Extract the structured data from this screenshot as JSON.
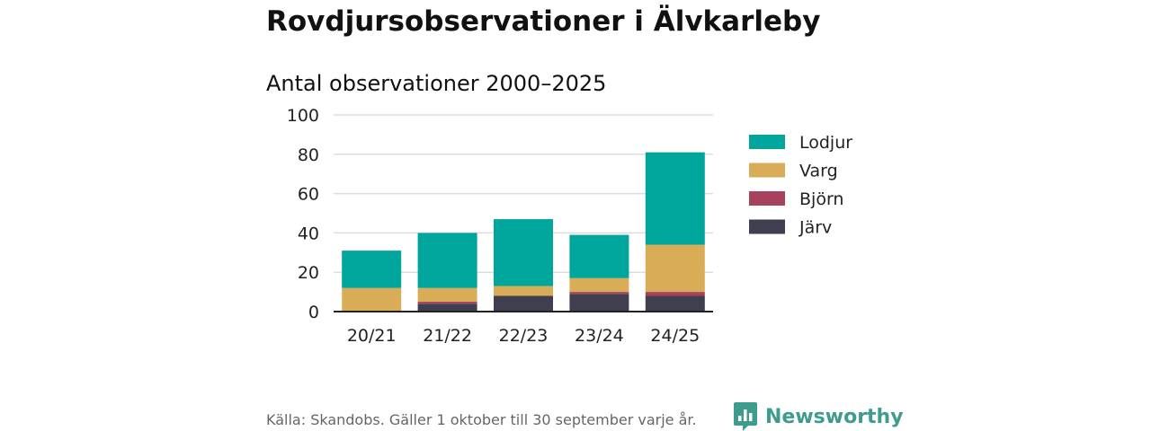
{
  "title": "Rovdjursobservationer i Älvkarleby",
  "subtitle": "Antal observationer 2000–2025",
  "source": "Källa: Skandobs. Gäller 1 oktober till 30 september varje år.",
  "brand": "Newsworthy",
  "chart_data": {
    "type": "bar",
    "stacked": true,
    "categories": [
      "20/21",
      "21/22",
      "22/23",
      "23/24",
      "24/25"
    ],
    "series": [
      {
        "name": "Järv",
        "color": "#3f3f4f",
        "values": [
          0,
          4,
          8,
          9,
          8
        ]
      },
      {
        "name": "Björn",
        "color": "#a8415b",
        "values": [
          0,
          1,
          0,
          1,
          2
        ]
      },
      {
        "name": "Varg",
        "color": "#d9ad57",
        "values": [
          12,
          7,
          5,
          7,
          24
        ]
      },
      {
        "name": "Lodjur",
        "color": "#00a69b",
        "values": [
          19,
          28,
          34,
          22,
          47
        ]
      }
    ],
    "legend_order": [
      "Lodjur",
      "Varg",
      "Björn",
      "Järv"
    ],
    "ylim": [
      0,
      100
    ],
    "yticks": [
      0,
      20,
      40,
      60,
      80,
      100
    ],
    "grid": true,
    "legend_position": "right",
    "xlabel": "",
    "ylabel": ""
  }
}
